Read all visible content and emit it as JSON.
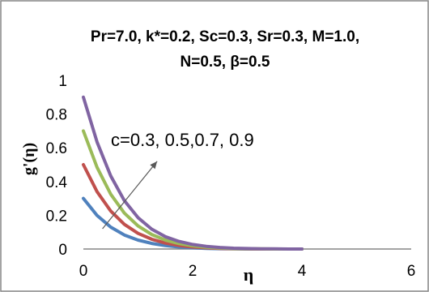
{
  "chart_data": {
    "type": "line",
    "title_line1": "Pr=7.0, k*=0.2, Sc=0.3, Sr=0.3, M=1.0,",
    "title_line2": "N=0.5, β=0.5",
    "xlabel": "η",
    "ylabel": "g'(η)",
    "xlim": [
      0,
      6
    ],
    "ylim": [
      0,
      1
    ],
    "x_ticks": [
      0,
      2,
      4,
      6
    ],
    "x_tick_labels": [
      "0",
      "2",
      "4",
      "6"
    ],
    "y_ticks": [
      0,
      0.2,
      0.4,
      0.6,
      0.8,
      1
    ],
    "y_tick_labels": [
      "0",
      "0.2",
      "0.4",
      "0.6",
      "0.8",
      "1"
    ],
    "grid": false,
    "legend": "none",
    "annotation": {
      "text": "c=0.3, 0.5,0.7, 0.9",
      "arrow_from": [
        0.35,
        0.12
      ],
      "arrow_to": [
        1.35,
        0.52
      ]
    },
    "x": [
      0,
      0.25,
      0.5,
      0.75,
      1.0,
      1.25,
      1.5,
      1.75,
      2.0,
      2.25,
      2.5,
      2.75,
      3.0,
      3.25,
      3.5,
      3.75,
      4.0
    ],
    "series": [
      {
        "color": "#4F81BD",
        "values": [
          0.3,
          0.199,
          0.13,
          0.083,
          0.053,
          0.033,
          0.02,
          0.012,
          0.007,
          0.004,
          0.002,
          0.001,
          0.0,
          0.0,
          0.0,
          0.0,
          0.0
        ]
      },
      {
        "color": "#C0504D",
        "values": [
          0.5,
          0.34,
          0.225,
          0.146,
          0.093,
          0.058,
          0.035,
          0.021,
          0.012,
          0.007,
          0.004,
          0.002,
          0.001,
          0.0,
          0.0,
          0.0,
          0.0
        ]
      },
      {
        "color": "#9BBB59",
        "values": [
          0.7,
          0.484,
          0.325,
          0.213,
          0.137,
          0.086,
          0.053,
          0.032,
          0.019,
          0.011,
          0.006,
          0.003,
          0.002,
          0.001,
          0.0,
          0.0,
          0.0
        ]
      },
      {
        "color": "#8064A2",
        "values": [
          0.9,
          0.634,
          0.433,
          0.287,
          0.186,
          0.118,
          0.073,
          0.045,
          0.027,
          0.016,
          0.009,
          0.005,
          0.003,
          0.001,
          0.001,
          0.0,
          0.0
        ]
      }
    ],
    "axis_color": "#868686",
    "border_color": "#868686",
    "annotation_arrow_color": "#595959"
  }
}
